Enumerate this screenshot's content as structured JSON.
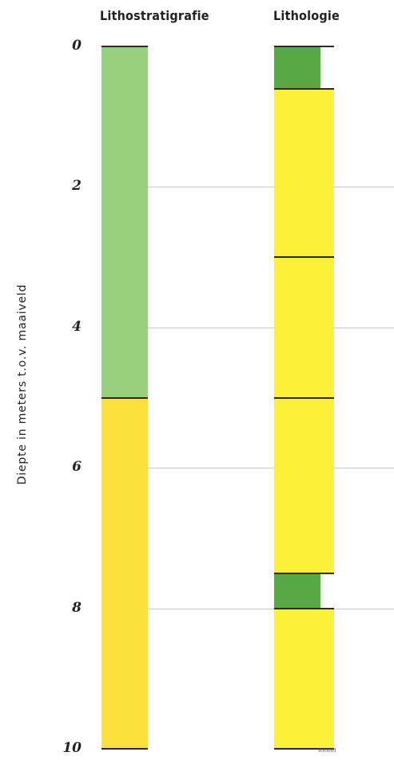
{
  "headers": {
    "lithostratigraphy": "Lithostratigrafie",
    "lithology": "Lithologie"
  },
  "axis": {
    "ylabel": "Diepte in meters t.o.v. maaiveld",
    "ticks": [
      "0",
      "2",
      "4",
      "6",
      "8",
      "10"
    ],
    "tick_values": [
      0,
      2,
      4,
      6,
      8,
      10
    ],
    "range": [
      0,
      10
    ],
    "grid": true
  },
  "colors": {
    "light_green": "#98d080",
    "dark_green": "#58a845",
    "mustard_yellow": "#fbe03a",
    "bright_yellow": "#fbf03a",
    "boundary": "#2a2a2a",
    "gridline": "#c9c9c9"
  },
  "columns": [
    {
      "id": "lithostratigraphy",
      "layers": [
        {
          "top": 0,
          "bottom": 5,
          "color": "#98d080"
        },
        {
          "top": 5,
          "bottom": 10,
          "color": "#fbe03a"
        }
      ]
    },
    {
      "id": "lithology",
      "layers": [
        {
          "top": 0,
          "bottom": 0.6,
          "color": "#58a845",
          "narrow": true
        },
        {
          "top": 0.6,
          "bottom": 3,
          "color": "#fbf03a"
        },
        {
          "top": 3,
          "bottom": 5,
          "color": "#fbf03a"
        },
        {
          "top": 5,
          "bottom": 7.5,
          "color": "#fbf03a"
        },
        {
          "top": 7.5,
          "bottom": 8,
          "color": "#58a845",
          "narrow": true
        },
        {
          "top": 8,
          "bottom": 10,
          "color": "#fbf03a"
        }
      ]
    }
  ]
}
